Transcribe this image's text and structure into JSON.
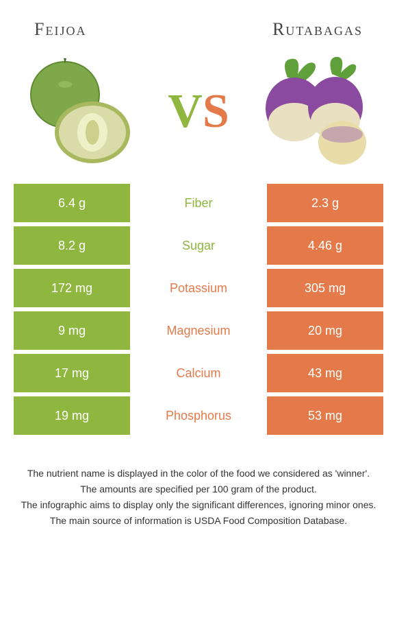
{
  "header": {
    "left_title": "Feijoa",
    "right_title": "Rutabagas"
  },
  "vs": {
    "v": "V",
    "s": "S"
  },
  "colors": {
    "left": "#8fb63f",
    "right": "#e47a4a"
  },
  "rows": [
    {
      "left": "6.4 g",
      "label": "Fiber",
      "right": "2.3 g",
      "winner": "left"
    },
    {
      "left": "8.2 g",
      "label": "Sugar",
      "right": "4.46 g",
      "winner": "left"
    },
    {
      "left": "172 mg",
      "label": "Potassium",
      "right": "305 mg",
      "winner": "right"
    },
    {
      "left": "9 mg",
      "label": "Magnesium",
      "right": "20 mg",
      "winner": "right"
    },
    {
      "left": "17 mg",
      "label": "Calcium",
      "right": "43 mg",
      "winner": "right"
    },
    {
      "left": "19 mg",
      "label": "Phosphorus",
      "right": "53 mg",
      "winner": "right"
    }
  ],
  "footer": {
    "line1": "The nutrient name is displayed in the color of the food we considered as 'winner'.",
    "line2": "The amounts are specified per 100 gram of the product.",
    "line3": "The infographic aims to display only the significant differences, ignoring minor ones.",
    "line4": "The main source of information is USDA Food Composition Database."
  }
}
